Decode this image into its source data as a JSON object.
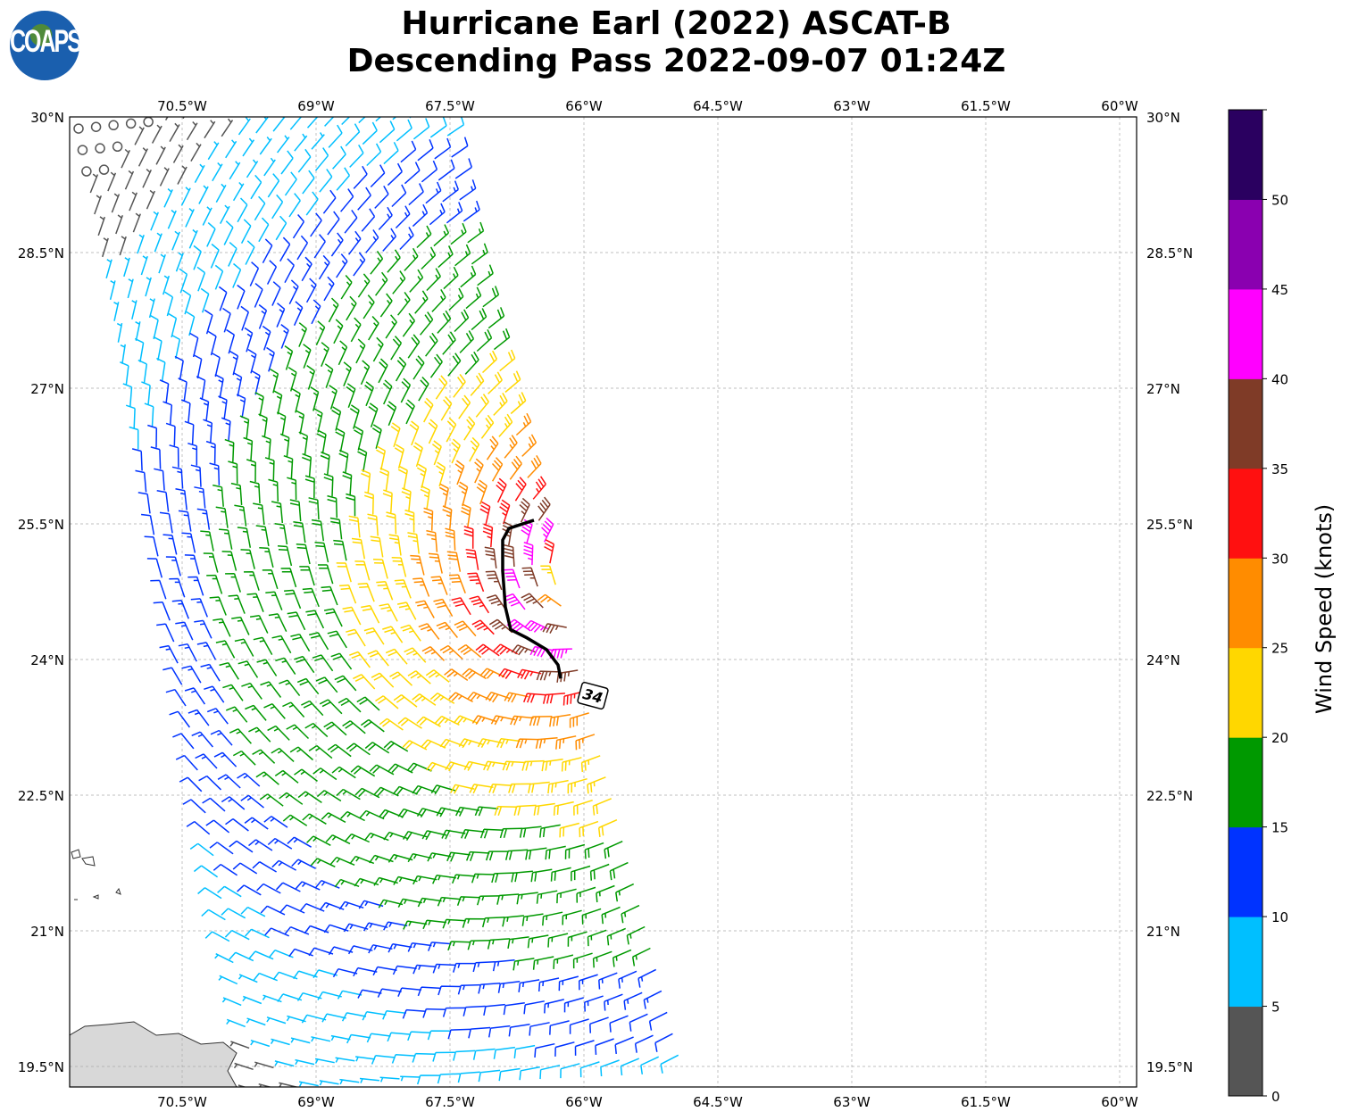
{
  "title_line1": "Hurricane Earl (2022) ASCAT-B",
  "title_line2": "Descending Pass 2022-09-07 01:24Z",
  "logo_text": "COAPS",
  "chart_data": {
    "type": "wind-barb-map",
    "lon_ticks": [
      {
        "value": -70.5,
        "label": "70.5°W"
      },
      {
        "value": -69,
        "label": "69°W"
      },
      {
        "value": -67.5,
        "label": "67.5°W"
      },
      {
        "value": -66,
        "label": "66°W"
      },
      {
        "value": -64.5,
        "label": "64.5°W"
      },
      {
        "value": -63,
        "label": "63°W"
      },
      {
        "value": -61.5,
        "label": "61.5°W"
      },
      {
        "value": -60,
        "label": "60°W"
      }
    ],
    "lat_ticks": [
      {
        "value": 30,
        "label": "30°N"
      },
      {
        "value": 28.5,
        "label": "28.5°N"
      },
      {
        "value": 27,
        "label": "27°N"
      },
      {
        "value": 25.5,
        "label": "25.5°N"
      },
      {
        "value": 24,
        "label": "24°N"
      },
      {
        "value": 22.5,
        "label": "22.5°N"
      },
      {
        "value": 21,
        "label": "21°N"
      },
      {
        "value": 19.5,
        "label": "19.5°N"
      }
    ],
    "lon_range": [
      -71.76,
      -59.8
    ],
    "lat_range": [
      19.27,
      30.0
    ],
    "grid": true,
    "storm_center": {
      "lon": -65.94,
      "lat": 24.83
    },
    "max_wind_kt": 45,
    "swath": {
      "left_top": {
        "lon": -71.74,
        "lat": 29.91
      },
      "left_bottom": {
        "lon": -69.74,
        "lat": 19.27
      },
      "right_top": {
        "lon": -67.64,
        "lat": 30.0
      },
      "right_upper": {
        "lon": -67.34,
        "lat": 28.43
      },
      "right_bottom": {
        "lon": -64.94,
        "lat": 19.35
      }
    },
    "contour_34kt": {
      "label": "34",
      "label_pos": {
        "lon": -65.9,
        "lat": 23.6
      },
      "points": [
        [
          -66.56,
          25.54
        ],
        [
          -66.84,
          25.45
        ],
        [
          -66.91,
          25.32
        ],
        [
          -66.91,
          24.98
        ],
        [
          -66.88,
          24.58
        ],
        [
          -66.82,
          24.33
        ],
        [
          -66.64,
          24.24
        ],
        [
          -66.42,
          24.11
        ],
        [
          -66.29,
          23.94
        ],
        [
          -66.26,
          23.79
        ]
      ]
    },
    "colorbar": {
      "label": "Wind Speed (knots)",
      "range": [
        0,
        55
      ],
      "ticks": [
        "0",
        "5",
        "10",
        "15",
        "20",
        "25",
        "30",
        "35",
        "40",
        "45",
        "50"
      ],
      "colors": [
        "#555555",
        "#00bfff",
        "#0033ff",
        "#009900",
        "#ffd700",
        "#ff8c00",
        "#ff1010",
        "#7f3b27",
        "#ff00ff",
        "#8a00b0",
        "#2a0060"
      ]
    }
  }
}
